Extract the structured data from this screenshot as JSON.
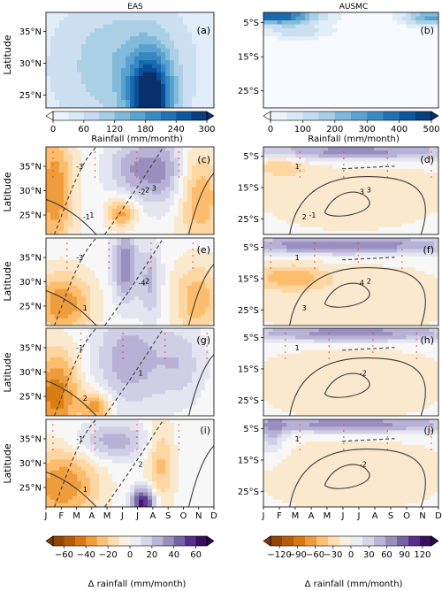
{
  "chart_data": {
    "type": "heatmap",
    "month_ticks": [
      "J",
      "F",
      "M",
      "A",
      "M",
      "J",
      "J",
      "A",
      "S",
      "O",
      "N",
      "D"
    ],
    "panels": [
      {
        "id": "a",
        "column_title": "EAS",
        "label": "(a)",
        "ylabel": "Latitude",
        "ylim": [
          23,
          38
        ],
        "yticks": [
          "35°N",
          "30°N",
          "25°N"
        ],
        "yvals": [
          35,
          30,
          25
        ],
        "palette": "blues",
        "description_values": {
          "peak_month": "July",
          "peak_latitude": "24°N",
          "peak_value": 300
        }
      },
      {
        "id": "b",
        "column_title": "AUSMC",
        "label": "(b)",
        "ylim": [
          -30,
          -2
        ],
        "yticks": [
          "5°S",
          "15°S",
          "25°S"
        ],
        "yvals": [
          -5,
          -15,
          -25
        ],
        "palette": "blues",
        "description_values": {
          "peak_months": [
            "January",
            "February",
            "December"
          ],
          "peak_latitude": "5°S",
          "peak_value": 500
        }
      },
      {
        "id": "c",
        "label": "(c)",
        "ylabel": "Latitude",
        "ylim": [
          21,
          39
        ],
        "yticks": [
          "35°N",
          "30°N",
          "25°N"
        ],
        "yvals": [
          35,
          30,
          25
        ],
        "palette": "diverging"
      },
      {
        "id": "d",
        "label": "(d)",
        "ylim": [
          -30,
          -2
        ],
        "yticks": [
          "5°S",
          "15°S",
          "25°S"
        ],
        "yvals": [
          -5,
          -15,
          -25
        ],
        "palette": "diverging"
      },
      {
        "id": "e",
        "label": "(e)",
        "ylabel": "Latitude",
        "ylim": [
          21,
          39
        ],
        "yticks": [
          "35°N",
          "30°N",
          "25°N"
        ],
        "yvals": [
          35,
          30,
          25
        ],
        "palette": "diverging"
      },
      {
        "id": "f",
        "label": "(f)",
        "ylim": [
          -30,
          -2
        ],
        "yticks": [
          "5°S",
          "15°S",
          "25°S"
        ],
        "yvals": [
          -5,
          -15,
          -25
        ],
        "palette": "diverging"
      },
      {
        "id": "g",
        "label": "(g)",
        "ylabel": "Latitude",
        "ylim": [
          21,
          39
        ],
        "yticks": [
          "35°N",
          "30°N",
          "25°N"
        ],
        "yvals": [
          35,
          30,
          25
        ],
        "palette": "diverging"
      },
      {
        "id": "h",
        "label": "(h)",
        "ylim": [
          -30,
          -2
        ],
        "yticks": [
          "5°S",
          "15°S",
          "25°S"
        ],
        "yvals": [
          -5,
          -15,
          -25
        ],
        "palette": "diverging"
      },
      {
        "id": "i",
        "label": "(i)",
        "ylabel": "Latitude",
        "ylim": [
          21,
          39
        ],
        "yticks": [
          "35°N",
          "30°N",
          "25°N"
        ],
        "yvals": [
          35,
          30,
          25
        ],
        "palette": "diverging"
      },
      {
        "id": "j",
        "label": "(j)",
        "ylim": [
          -30,
          -2
        ],
        "yticks": [
          "5°S",
          "15°S",
          "25°S"
        ],
        "yvals": [
          -5,
          -15,
          -25
        ],
        "palette": "diverging"
      }
    ],
    "colorbars": [
      {
        "id": "cb-a",
        "label": "Rainfall (mm/month)",
        "ticks": [
          "0",
          "60",
          "120",
          "180",
          "240",
          "300"
        ],
        "range": [
          0,
          300
        ],
        "palette": "blues"
      },
      {
        "id": "cb-b",
        "label": "Rainfall (mm/month)",
        "ticks": [
          "0",
          "100",
          "200",
          "300",
          "400",
          "500"
        ],
        "range": [
          0,
          500
        ],
        "palette": "blues"
      },
      {
        "id": "cb-left",
        "label": "Δ rainfall (mm/month)",
        "ticks": [
          "−60",
          "−40",
          "−20",
          "0",
          "20",
          "40",
          "60"
        ],
        "range": [
          -70,
          70
        ],
        "palette": "diverging"
      },
      {
        "id": "cb-right",
        "label": "Δ rainfall (mm/month)",
        "ticks": [
          "−120",
          "−90",
          "−60",
          "−30",
          "0",
          "30",
          "60",
          "90",
          "120"
        ],
        "range": [
          -135,
          135
        ],
        "palette": "diverging"
      }
    ],
    "contour_labels": {
      "c": [
        "-3",
        "-2",
        "-1",
        "2",
        "1",
        "3"
      ],
      "d": [
        "1",
        "3",
        "2",
        "3",
        "-1"
      ],
      "e": [
        "-3",
        "-4",
        "1",
        "2"
      ],
      "f": [
        "1",
        "4",
        "3",
        "2"
      ],
      "g": [
        "-1",
        "1",
        "2"
      ],
      "h": [
        "1",
        "-2"
      ],
      "i": [
        "-1",
        "2",
        "1"
      ],
      "j": [
        "1",
        "-2"
      ]
    },
    "colors": {
      "blue_dark": "#08306b",
      "blue_light": "#f7fbff",
      "orange_dark": "#7f3b08",
      "purple_dark": "#2d004b",
      "neutral": "#f7f7f7",
      "stipple": "#e8413c",
      "contour": "#3c3c3c"
    }
  }
}
